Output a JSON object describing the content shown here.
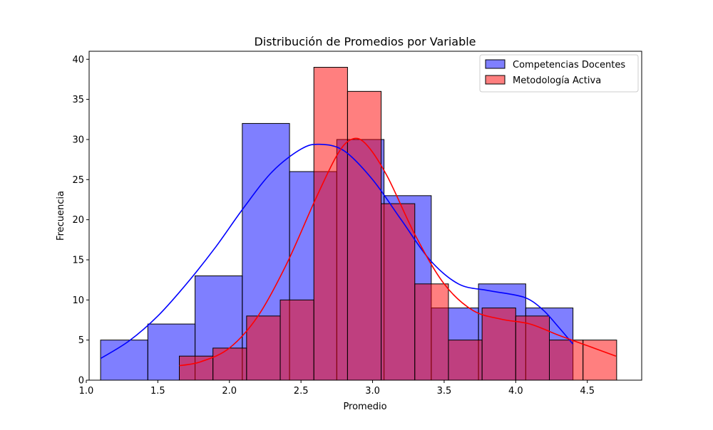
{
  "chart_data": {
    "type": "bar",
    "title": "Distribución de Promedios por Variable",
    "xlabel": "Promedio",
    "ylabel": "Frecuencia",
    "xlim": [
      1.02,
      4.88
    ],
    "ylim": [
      0,
      41
    ],
    "x_ticks": [
      1.0,
      1.5,
      2.0,
      2.5,
      3.0,
      3.5,
      4.0,
      4.5
    ],
    "x_tick_labels": [
      "1.0",
      "1.5",
      "2.0",
      "2.5",
      "3.0",
      "3.5",
      "4.0",
      "4.5"
    ],
    "y_ticks": [
      0,
      5,
      10,
      15,
      20,
      25,
      30,
      35,
      40
    ],
    "y_tick_labels": [
      "0",
      "5",
      "10",
      "15",
      "20",
      "25",
      "30",
      "35",
      "40"
    ],
    "legend_position": "top-right",
    "series": [
      {
        "name": "Competencias Docentes",
        "color": "#0000ff",
        "bins": [
          {
            "x0": 1.1,
            "x1": 1.43,
            "count": 5
          },
          {
            "x0": 1.43,
            "x1": 1.76,
            "count": 7
          },
          {
            "x0": 1.76,
            "x1": 2.09,
            "count": 13
          },
          {
            "x0": 2.09,
            "x1": 2.42,
            "count": 32
          },
          {
            "x0": 2.42,
            "x1": 2.75,
            "count": 26
          },
          {
            "x0": 2.75,
            "x1": 3.08,
            "count": 30
          },
          {
            "x0": 3.08,
            "x1": 3.41,
            "count": 23
          },
          {
            "x0": 3.41,
            "x1": 3.74,
            "count": 9
          },
          {
            "x0": 3.74,
            "x1": 4.07,
            "count": 12
          },
          {
            "x0": 4.07,
            "x1": 4.4,
            "count": 9
          }
        ],
        "kde": [
          [
            1.1,
            2.7
          ],
          [
            1.3,
            4.9
          ],
          [
            1.5,
            8.0
          ],
          [
            1.7,
            12.0
          ],
          [
            1.9,
            16.5
          ],
          [
            2.1,
            21.5
          ],
          [
            2.3,
            26.0
          ],
          [
            2.5,
            28.8
          ],
          [
            2.63,
            29.4
          ],
          [
            2.8,
            28.6
          ],
          [
            3.0,
            25.0
          ],
          [
            3.2,
            20.0
          ],
          [
            3.4,
            15.0
          ],
          [
            3.6,
            12.0
          ],
          [
            3.8,
            11.2
          ],
          [
            4.0,
            10.6
          ],
          [
            4.1,
            10.0
          ],
          [
            4.2,
            8.6
          ],
          [
            4.3,
            6.6
          ],
          [
            4.4,
            4.5
          ]
        ]
      },
      {
        "name": "Metodología Activa",
        "color": "#ff0000",
        "bins": [
          {
            "x0": 1.65,
            "x1": 1.885,
            "count": 3
          },
          {
            "x0": 1.885,
            "x1": 2.12,
            "count": 4
          },
          {
            "x0": 2.12,
            "x1": 2.355,
            "count": 8
          },
          {
            "x0": 2.355,
            "x1": 2.59,
            "count": 10
          },
          {
            "x0": 2.59,
            "x1": 2.825,
            "count": 39
          },
          {
            "x0": 2.825,
            "x1": 3.06,
            "count": 36
          },
          {
            "x0": 3.06,
            "x1": 3.295,
            "count": 22
          },
          {
            "x0": 3.295,
            "x1": 3.53,
            "count": 12
          },
          {
            "x0": 3.53,
            "x1": 3.765,
            "count": 5
          },
          {
            "x0": 3.765,
            "x1": 4.0,
            "count": 9
          },
          {
            "x0": 4.0,
            "x1": 4.235,
            "count": 8
          },
          {
            "x0": 4.235,
            "x1": 4.47,
            "count": 5
          },
          {
            "x0": 4.47,
            "x1": 4.705,
            "count": 5
          }
        ],
        "kde": [
          [
            1.65,
            1.8
          ],
          [
            1.8,
            2.3
          ],
          [
            2.0,
            4.0
          ],
          [
            2.2,
            8.0
          ],
          [
            2.4,
            14.5
          ],
          [
            2.6,
            22.5
          ],
          [
            2.75,
            28.0
          ],
          [
            2.85,
            30.0
          ],
          [
            2.95,
            29.5
          ],
          [
            3.1,
            25.5
          ],
          [
            3.3,
            18.0
          ],
          [
            3.5,
            12.0
          ],
          [
            3.7,
            8.7
          ],
          [
            3.9,
            7.6
          ],
          [
            4.1,
            7.0
          ],
          [
            4.3,
            5.6
          ],
          [
            4.5,
            4.3
          ],
          [
            4.7,
            3.0
          ]
        ]
      }
    ]
  }
}
